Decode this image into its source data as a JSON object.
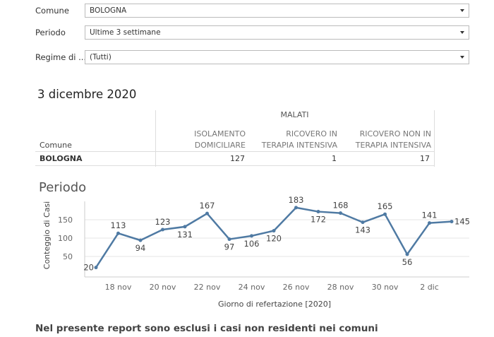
{
  "filters": [
    {
      "label": "Comune",
      "value": "BOLOGNA"
    },
    {
      "label": "Periodo",
      "value": "Ultime 3 settimane"
    },
    {
      "label": "Regime di ...",
      "value": "(Tutti)"
    }
  ],
  "date_title": "3 dicembre 2020",
  "table": {
    "group_header": "MALATI",
    "columns": [
      "Comune",
      "ISOLAMENTO DOMICILIARE",
      "RICOVERO IN TERAPIA INTENSIVA",
      "RICOVERO NON IN TERAPIA INTENSIVA"
    ],
    "rows": [
      [
        "BOLOGNA",
        127,
        1,
        17
      ]
    ]
  },
  "chart_data": {
    "type": "line",
    "title": "Periodo",
    "x_label": "Giorno di refertazione [2020]",
    "y_label": "Conteggio di Casi",
    "categories": [
      null,
      "18 nov",
      null,
      "20 nov",
      null,
      "22 nov",
      null,
      "24 nov",
      null,
      "26 nov",
      null,
      "28 nov",
      null,
      "30 nov",
      null,
      "2 dic",
      null
    ],
    "series": [
      {
        "name": "Conteggio di Casi",
        "color": "#4f7aa3",
        "values": [
          20,
          113,
          94,
          123,
          131,
          167,
          97,
          106,
          120,
          183,
          172,
          168,
          143,
          165,
          56,
          141,
          145
        ]
      }
    ],
    "ylim": [
      0,
      200
    ],
    "yticks": [
      50,
      100,
      150
    ],
    "grid": true
  },
  "footer_note": "Nel presente report sono esclusi i casi non residenti nei comuni"
}
